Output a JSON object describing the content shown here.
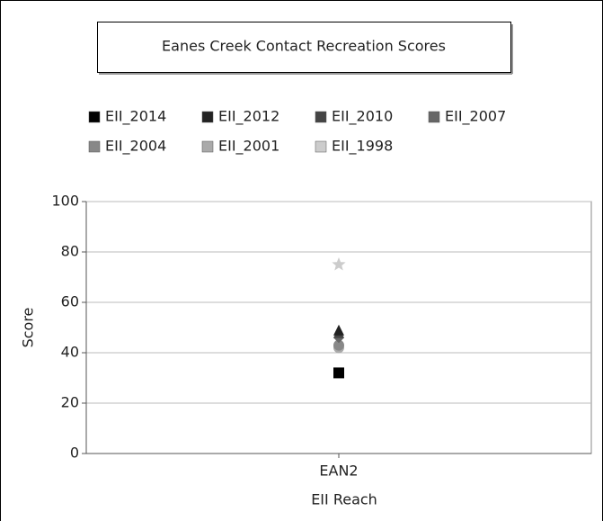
{
  "chart_data": {
    "type": "scatter",
    "title": "Eanes Creek Contact Recreation Scores",
    "x_label": "EII Reach",
    "y_label": "Score",
    "categories": [
      "EAN2"
    ],
    "series": [
      {
        "name": "EII_2014",
        "color": "#000000",
        "marker": "square",
        "values": [
          32
        ]
      },
      {
        "name": "EII_2012",
        "color": "#222222",
        "marker": "triangle",
        "values": [
          49
        ]
      },
      {
        "name": "EII_2010",
        "color": "#444444",
        "marker": "triangle",
        "values": [
          48
        ]
      },
      {
        "name": "EII_2007",
        "color": "#666666",
        "marker": "diamond",
        "values": [
          46
        ]
      },
      {
        "name": "EII_2004",
        "color": "#888888",
        "marker": "circle",
        "values": [
          43
        ]
      },
      {
        "name": "EII_2001",
        "color": "#aaaaaa",
        "marker": "circle",
        "values": [
          42
        ]
      },
      {
        "name": "EII_1998",
        "color": "#cccccc",
        "marker": "star",
        "values": [
          75
        ]
      }
    ],
    "ylim": [
      0,
      100
    ],
    "yticks": [
      0,
      20,
      40,
      60,
      80,
      100
    ],
    "grid": true
  }
}
